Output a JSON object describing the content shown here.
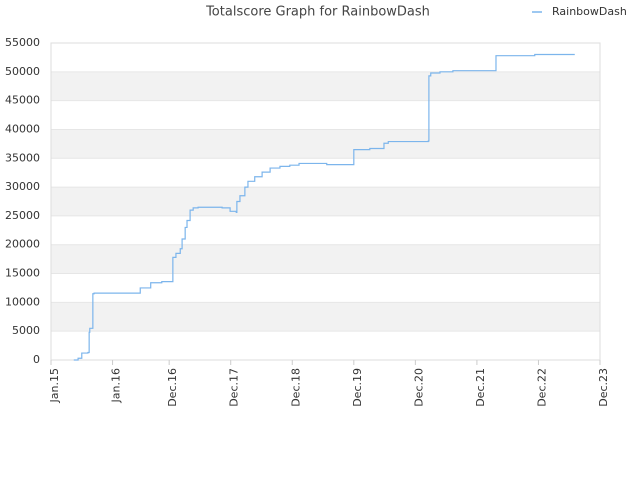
{
  "chart_data": {
    "type": "step",
    "title": "Totalscore Graph for RainbowDash",
    "series": [
      {
        "name": "RainbowDash",
        "color": "#7cb5ec",
        "x": [
          2015.37,
          2015.44,
          2015.5,
          2015.6,
          2015.62,
          2015.63,
          2015.68,
          2015.7,
          2016.45,
          2016.62,
          2016.8,
          2016.98,
          2017.03,
          2017.1,
          2017.13,
          2017.18,
          2017.21,
          2017.26,
          2017.31,
          2017.39,
          2017.78,
          2017.91,
          2018.01,
          2018.02,
          2018.07,
          2018.15,
          2018.2,
          2018.31,
          2018.43,
          2018.56,
          2018.72,
          2018.88,
          2019.03,
          2019.48,
          2019.92,
          2020.18,
          2020.41,
          2020.48,
          2021.13,
          2021.14,
          2021.17,
          2021.32,
          2021.53,
          2022.23,
          2022.86,
          2023.51
        ],
        "values": [
          0,
          300,
          1200,
          1300,
          4800,
          5500,
          11500,
          11600,
          12500,
          13400,
          13600,
          17800,
          18500,
          19300,
          21000,
          23000,
          24200,
          26000,
          26400,
          26500,
          26400,
          25800,
          25600,
          27500,
          28500,
          30000,
          31000,
          31800,
          32600,
          33300,
          33600,
          33800,
          34100,
          33900,
          36500,
          36700,
          37600,
          37900,
          38000,
          49300,
          49800,
          50000,
          50200,
          52800,
          53000,
          53000
        ]
      }
    ],
    "xlim": [
      2015.0,
      2023.92
    ],
    "xticks": [
      {
        "value": 2015.0,
        "label": "Jan.15"
      },
      {
        "value": 2016.0,
        "label": "Jan.16"
      },
      {
        "value": 2016.92,
        "label": "Dec.16"
      },
      {
        "value": 2017.92,
        "label": "Dec.17"
      },
      {
        "value": 2018.92,
        "label": "Dec.18"
      },
      {
        "value": 2019.92,
        "label": "Dec.19"
      },
      {
        "value": 2020.92,
        "label": "Dec.20"
      },
      {
        "value": 2021.92,
        "label": "Dec.21"
      },
      {
        "value": 2022.92,
        "label": "Dec.22"
      },
      {
        "value": 2023.92,
        "label": "Dec.23"
      }
    ],
    "ylim": [
      0,
      55000
    ],
    "yticks": [
      0,
      5000,
      10000,
      15000,
      20000,
      25000,
      30000,
      35000,
      40000,
      45000,
      50000,
      55000
    ],
    "grid": true,
    "legend": "top-right"
  }
}
